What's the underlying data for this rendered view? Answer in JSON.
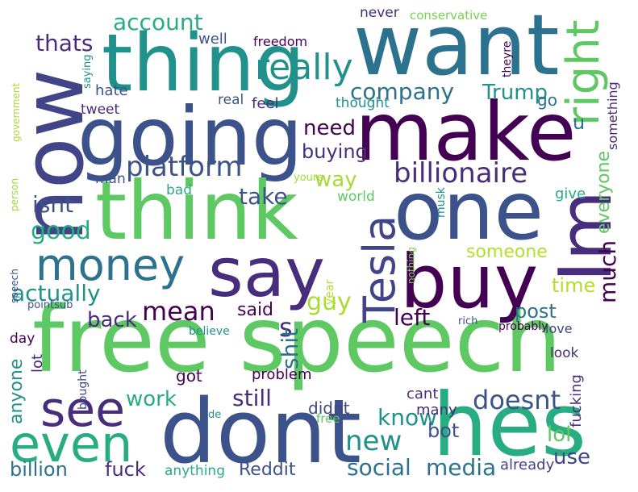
{
  "palette": {
    "c1": "#440154",
    "c2": "#3b528b",
    "c3": "#21918c",
    "c4": "#5ec962",
    "c5": "#9fda3a",
    "c6": "#b5de2b",
    "c7": "#2c728e",
    "c8": "#472d7b",
    "c9": "#27ad81",
    "c10": "#414487",
    "c11": "#7ad151",
    "c12": "#a8db34"
  },
  "words": [
    {
      "text": "free speech",
      "color": "c4"
    },
    {
      "text": "dont",
      "color": "c2"
    },
    {
      "text": "hes",
      "color": "c9"
    },
    {
      "text": "thing",
      "color": "c3"
    },
    {
      "text": "want",
      "color": "c7"
    },
    {
      "text": "now",
      "color": "c10"
    },
    {
      "text": "going",
      "color": "c2"
    },
    {
      "text": "make",
      "color": "c1"
    },
    {
      "text": "think",
      "color": "c4"
    },
    {
      "text": "one",
      "color": "c2"
    },
    {
      "text": "Im",
      "color": "c8"
    },
    {
      "text": "right",
      "color": "c4"
    },
    {
      "text": "say",
      "color": "c8"
    },
    {
      "text": "buy",
      "color": "c1"
    },
    {
      "text": "Tesla",
      "color": "c10"
    },
    {
      "text": "money",
      "color": "c7"
    },
    {
      "text": "see",
      "color": "c8"
    },
    {
      "text": "even",
      "color": "c9"
    },
    {
      "text": "really",
      "color": "c3"
    },
    {
      "text": "account",
      "color": "c9"
    },
    {
      "text": "thats",
      "color": "c8"
    },
    {
      "text": "company",
      "color": "c7"
    },
    {
      "text": "Trump",
      "color": "c3"
    },
    {
      "text": "billionaire",
      "color": "c8"
    },
    {
      "text": "platform",
      "color": "c2"
    },
    {
      "text": "need",
      "color": "c1"
    },
    {
      "text": "buying",
      "color": "c8"
    },
    {
      "text": "way",
      "color": "c12"
    },
    {
      "text": "take",
      "color": "c2"
    },
    {
      "text": "isnt",
      "color": "c2"
    },
    {
      "text": "good",
      "color": "c9"
    },
    {
      "text": "actually",
      "color": "c3"
    },
    {
      "text": "mean",
      "color": "c1"
    },
    {
      "text": "said",
      "color": "c1"
    },
    {
      "text": "much",
      "color": "c1"
    },
    {
      "text": "everyone",
      "color": "c4"
    },
    {
      "text": "someone",
      "color": "c6"
    },
    {
      "text": "time",
      "color": "c6"
    },
    {
      "text": "post",
      "color": "c7"
    },
    {
      "text": "left",
      "color": "c1"
    },
    {
      "text": "guy",
      "color": "c12"
    },
    {
      "text": "s",
      "color": "c8"
    },
    {
      "text": "shit",
      "color": "c7"
    },
    {
      "text": "back",
      "color": "c8"
    },
    {
      "text": "work",
      "color": "c9"
    },
    {
      "text": "still",
      "color": "c8"
    },
    {
      "text": "doesnt",
      "color": "c2"
    },
    {
      "text": "know",
      "color": "c3"
    },
    {
      "text": "new",
      "color": "c3"
    },
    {
      "text": "bot",
      "color": "c2"
    },
    {
      "text": "lol",
      "color": "c4"
    },
    {
      "text": "social",
      "color": "c7"
    },
    {
      "text": "media",
      "color": "c7"
    },
    {
      "text": "use",
      "color": "c10"
    },
    {
      "text": "billion",
      "color": "c7"
    },
    {
      "text": "fuck",
      "color": "c8"
    },
    {
      "text": "anything",
      "color": "c9"
    },
    {
      "text": "Reddit",
      "color": "c2"
    },
    {
      "text": "already",
      "color": "c10"
    },
    {
      "text": "anyone",
      "color": "c3"
    },
    {
      "text": "got",
      "color": "c1"
    },
    {
      "text": "cant",
      "color": "c8"
    },
    {
      "text": "didnt",
      "color": "c10"
    },
    {
      "text": "many",
      "color": "c8"
    },
    {
      "text": "fucking",
      "color": "c8"
    },
    {
      "text": "problem",
      "color": "c1"
    },
    {
      "text": "give",
      "color": "c9"
    },
    {
      "text": "never",
      "color": "c8"
    },
    {
      "text": "conservative",
      "color": "c11"
    },
    {
      "text": "freedom",
      "color": "c1"
    },
    {
      "text": "well",
      "color": "c2"
    },
    {
      "text": "hate",
      "color": "c2"
    },
    {
      "text": "tweet",
      "color": "c8"
    },
    {
      "text": "real",
      "color": "c2"
    },
    {
      "text": "feel",
      "color": "c8"
    },
    {
      "text": "thought",
      "color": "c3"
    },
    {
      "text": "man",
      "color": "c2"
    },
    {
      "text": "bad",
      "color": "c9"
    },
    {
      "text": "world",
      "color": "c4"
    },
    {
      "text": "love",
      "color": "c10"
    },
    {
      "text": "look",
      "color": "c8"
    },
    {
      "text": "something",
      "color": "c8"
    },
    {
      "text": "go",
      "color": "c7"
    },
    {
      "text": "theyre",
      "color": "c1"
    },
    {
      "text": "lot",
      "color": "c8"
    },
    {
      "text": "day",
      "color": "c1"
    },
    {
      "text": "year",
      "color": "c6"
    },
    {
      "text": "speech",
      "color": "c2"
    },
    {
      "text": "government",
      "color": "c12"
    },
    {
      "text": "person",
      "color": "c5"
    },
    {
      "text": "saying",
      "color": "c3"
    },
    {
      "text": "believe",
      "color": "c3"
    },
    {
      "text": "bought",
      "color": "c10"
    },
    {
      "text": "free",
      "color": "c4"
    },
    {
      "text": "probably",
      "color": "c1"
    },
    {
      "text": "musk",
      "color": "c3"
    },
    {
      "text": "nothing",
      "color": "c11"
    },
    {
      "text": "rich",
      "color": "c2"
    },
    {
      "text": "youre",
      "color": "c5"
    },
    {
      "text": "pointsub",
      "color": "c2"
    },
    {
      "text": "de",
      "color": "c3"
    },
    {
      "text": "u",
      "color": "c7"
    }
  ]
}
